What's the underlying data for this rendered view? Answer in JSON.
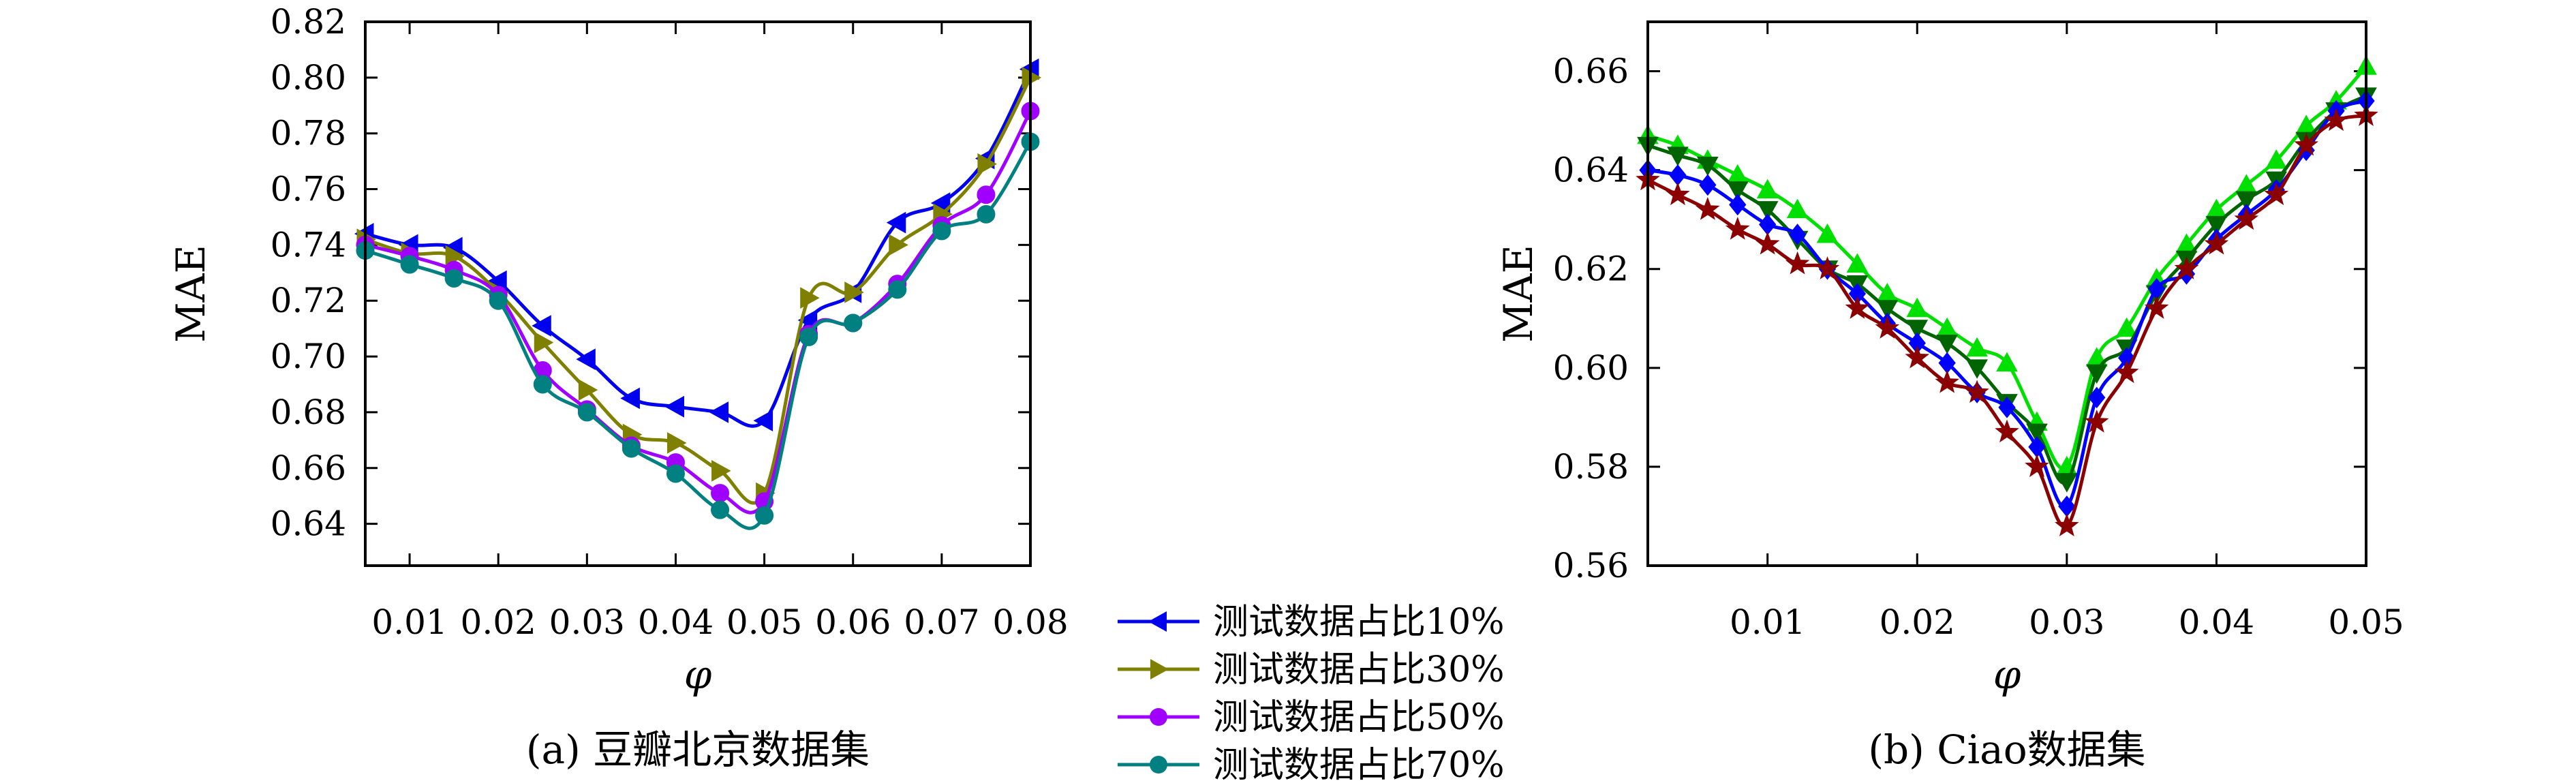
{
  "chart_data": [
    {
      "type": "line",
      "caption": "(a) 豆瓣北京数据集",
      "xlabel": "φ",
      "ylabel": "MAE",
      "xlim": [
        0.005,
        0.08
      ],
      "ylim": [
        0.625,
        0.82
      ],
      "xticks": [
        0.01,
        0.02,
        0.03,
        0.04,
        0.05,
        0.06,
        0.07,
        0.08
      ],
      "xtick_labels": [
        "0.01",
        "0.02",
        "0.03",
        "0.04",
        "0.05",
        "0.06",
        "0.07",
        "0.08"
      ],
      "yticks": [
        0.64,
        0.66,
        0.68,
        0.7,
        0.72,
        0.74,
        0.76,
        0.78,
        0.8,
        0.82
      ],
      "ytick_labels": [
        "0.64",
        "0.66",
        "0.68",
        "0.70",
        "0.72",
        "0.74",
        "0.76",
        "0.78",
        "0.80",
        "0.82"
      ],
      "x": [
        0.005,
        0.01,
        0.015,
        0.02,
        0.025,
        0.03,
        0.035,
        0.04,
        0.045,
        0.05,
        0.055,
        0.06,
        0.065,
        0.07,
        0.075,
        0.08
      ],
      "legend": {
        "placement": "right-outside-bottom"
      },
      "series": [
        {
          "name": "测试数据占比10%",
          "color": "#0000ee",
          "marker": "triangle-left",
          "values": [
            0.744,
            0.74,
            0.739,
            0.727,
            0.711,
            0.699,
            0.685,
            0.682,
            0.68,
            0.677,
            0.713,
            0.723,
            0.748,
            0.755,
            0.771,
            0.803
          ]
        },
        {
          "name": "测试数据占比30%",
          "color": "#808000",
          "marker": "triangle-right",
          "values": [
            0.742,
            0.737,
            0.736,
            0.723,
            0.705,
            0.688,
            0.672,
            0.669,
            0.659,
            0.651,
            0.721,
            0.723,
            0.74,
            0.751,
            0.769,
            0.8
          ]
        },
        {
          "name": "测试数据占比50%",
          "color": "#a000ff",
          "marker": "circle",
          "values": [
            0.74,
            0.736,
            0.731,
            0.722,
            0.695,
            0.681,
            0.668,
            0.662,
            0.651,
            0.648,
            0.708,
            0.712,
            0.726,
            0.747,
            0.758,
            0.788
          ]
        },
        {
          "name": "测试数据占比70%",
          "color": "#008080",
          "marker": "circle",
          "values": [
            0.738,
            0.733,
            0.728,
            0.72,
            0.69,
            0.68,
            0.667,
            0.658,
            0.645,
            0.643,
            0.707,
            0.712,
            0.724,
            0.745,
            0.751,
            0.777
          ]
        }
      ]
    },
    {
      "type": "line",
      "caption": "(b) Ciao数据集",
      "xlabel": "φ",
      "ylabel": "MAE",
      "xlim": [
        0.002,
        0.05
      ],
      "ylim": [
        0.56,
        0.67
      ],
      "xticks": [
        0.01,
        0.02,
        0.03,
        0.04,
        0.05
      ],
      "xtick_labels": [
        "0.01",
        "0.02",
        "0.03",
        "0.04",
        "0.05"
      ],
      "yticks": [
        0.56,
        0.58,
        0.6,
        0.62,
        0.64,
        0.66
      ],
      "ytick_labels": [
        "0.56",
        "0.58",
        "0.60",
        "0.62",
        "0.64",
        "0.66"
      ],
      "x": [
        0.002,
        0.004,
        0.006,
        0.008,
        0.01,
        0.012,
        0.014,
        0.016,
        0.018,
        0.02,
        0.022,
        0.024,
        0.026,
        0.028,
        0.03,
        0.032,
        0.034,
        0.036,
        0.038,
        0.04,
        0.042,
        0.044,
        0.046,
        0.048,
        0.05
      ],
      "series": [
        {
          "name": "",
          "color": "#00e000",
          "marker": "triangle-up",
          "values": [
            0.647,
            0.645,
            0.642,
            0.639,
            0.636,
            0.632,
            0.627,
            0.621,
            0.615,
            0.612,
            0.608,
            0.604,
            0.601,
            0.589,
            0.58,
            0.602,
            0.608,
            0.618,
            0.625,
            0.632,
            0.637,
            0.642,
            0.649,
            0.654,
            0.661
          ]
        },
        {
          "name": "",
          "color": "#006400",
          "marker": "triangle-down",
          "values": [
            0.645,
            0.643,
            0.641,
            0.636,
            0.632,
            0.626,
            0.62,
            0.617,
            0.612,
            0.608,
            0.605,
            0.6,
            0.593,
            0.587,
            0.577,
            0.599,
            0.604,
            0.615,
            0.622,
            0.629,
            0.634,
            0.638,
            0.646,
            0.652,
            0.655
          ]
        },
        {
          "name": "",
          "color": "#0000ff",
          "marker": "diamond",
          "values": [
            0.64,
            0.639,
            0.637,
            0.633,
            0.629,
            0.627,
            0.62,
            0.615,
            0.609,
            0.605,
            0.601,
            0.595,
            0.592,
            0.584,
            0.572,
            0.594,
            0.602,
            0.616,
            0.619,
            0.626,
            0.631,
            0.636,
            0.644,
            0.652,
            0.654
          ]
        },
        {
          "name": "",
          "color": "#8b0000",
          "marker": "star",
          "values": [
            0.638,
            0.635,
            0.632,
            0.628,
            0.625,
            0.621,
            0.62,
            0.612,
            0.608,
            0.602,
            0.597,
            0.595,
            0.587,
            0.58,
            0.568,
            0.589,
            0.599,
            0.612,
            0.62,
            0.625,
            0.63,
            0.635,
            0.645,
            0.65,
            0.651
          ]
        }
      ]
    }
  ]
}
